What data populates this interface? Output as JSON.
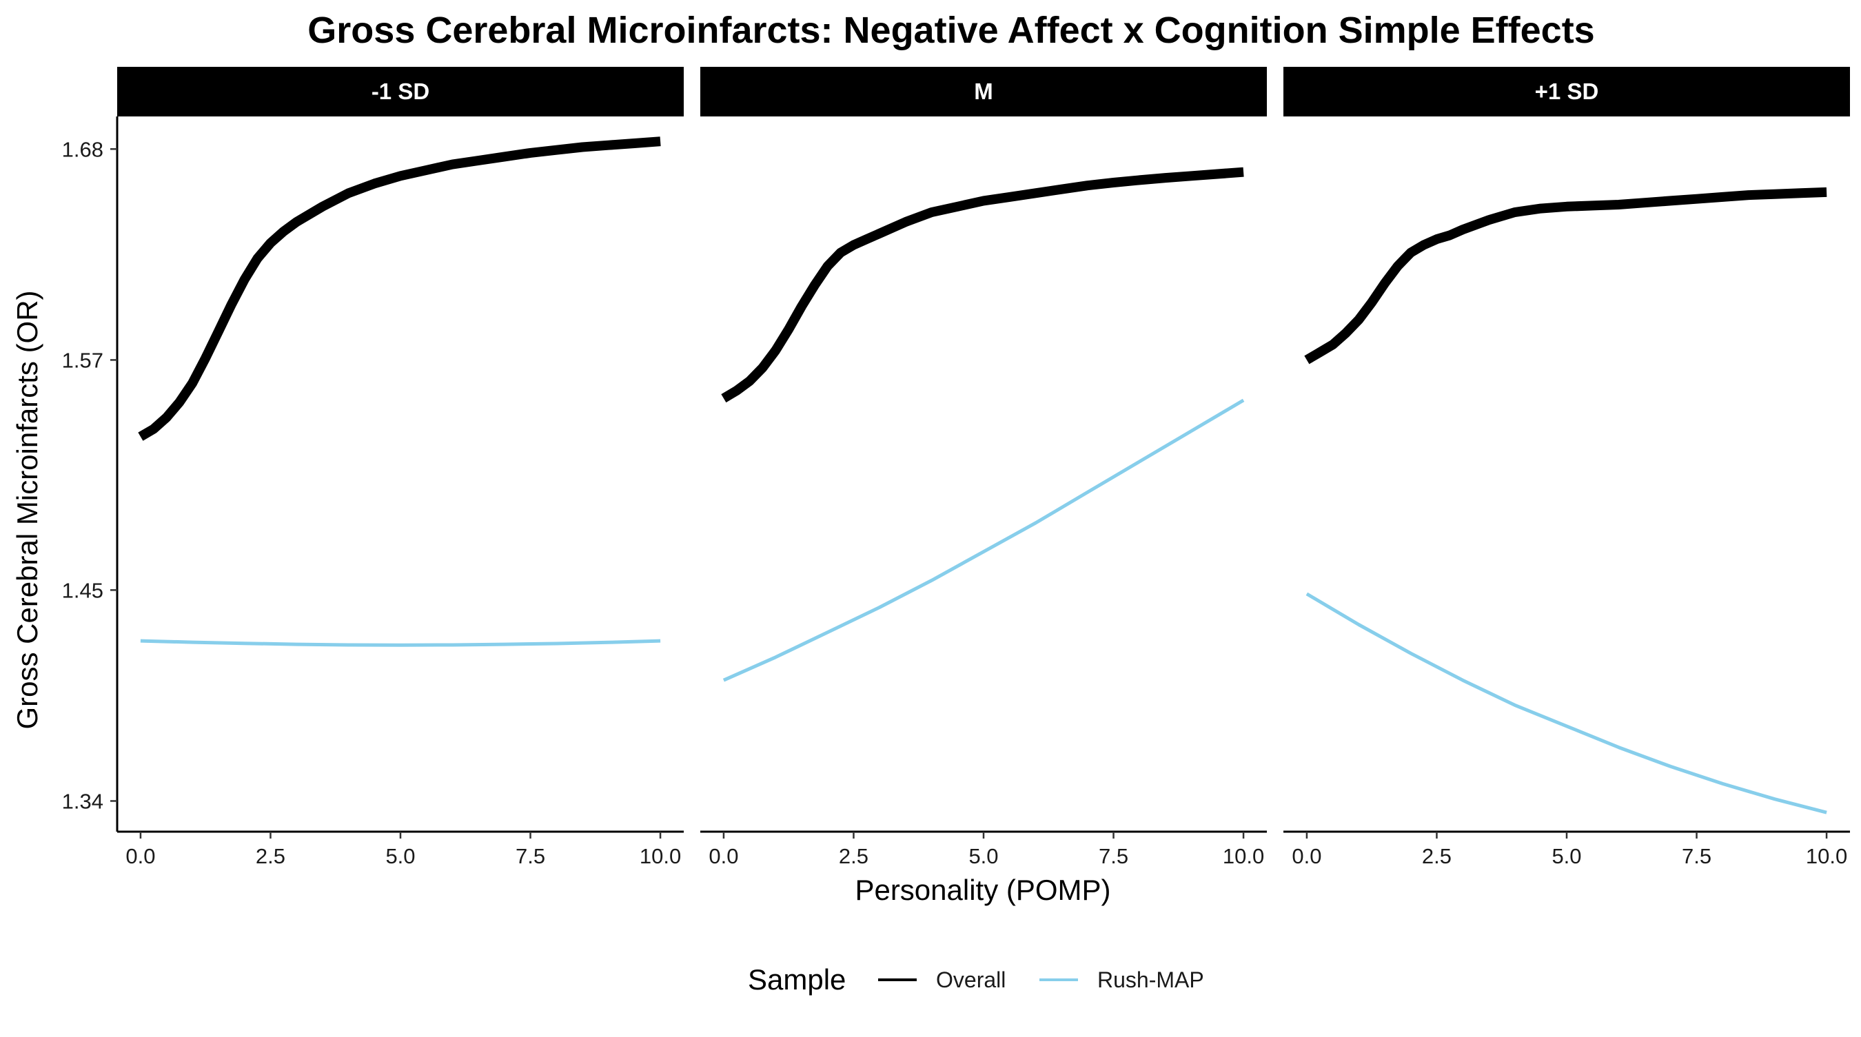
{
  "chart_data": {
    "type": "line",
    "title": "Gross Cerebral Microinfarcts: Negative Affect x Cognition Simple Effects",
    "xlabel": "Personality (POMP)",
    "ylabel": "Gross Cerebral Microinfarcts (OR)",
    "xlim": [
      -0.45,
      10.45
    ],
    "ylim": [
      1.324,
      1.697
    ],
    "xticks": [
      "0.0",
      "2.5",
      "5.0",
      "7.5",
      "10.0"
    ],
    "yticks": [
      "1.34",
      "1.45",
      "1.57",
      "1.68"
    ],
    "ytick_values": [
      1.34,
      1.45,
      1.57,
      1.68
    ],
    "xtick_values": [
      0,
      2.5,
      5,
      7.5,
      10
    ],
    "legend": {
      "title": "Sample",
      "position": "bottom"
    },
    "series_styles": [
      {
        "name": "Overall",
        "color": "#000000",
        "width": "thick"
      },
      {
        "name": "Rush-MAP",
        "color": "#87ceeb",
        "width": "thin"
      }
    ],
    "panels": [
      {
        "label": "-1 SD",
        "series": [
          {
            "name": "Overall",
            "x": [
              0,
              0.25,
              0.5,
              0.75,
              1,
              1.25,
              1.5,
              1.75,
              2,
              2.25,
              2.5,
              2.75,
              3,
              3.5,
              4,
              4.5,
              5,
              5.5,
              6,
              6.5,
              7,
              7.5,
              8,
              8.5,
              9,
              9.5,
              10
            ],
            "y": [
              1.53,
              1.534,
              1.54,
              1.548,
              1.558,
              1.571,
              1.585,
              1.599,
              1.612,
              1.623,
              1.631,
              1.637,
              1.642,
              1.65,
              1.657,
              1.662,
              1.666,
              1.669,
              1.672,
              1.674,
              1.676,
              1.678,
              1.6795,
              1.681,
              1.682,
              1.683,
              1.684
            ]
          },
          {
            "name": "Rush-MAP",
            "x": [
              0,
              1,
              2,
              3,
              4,
              5,
              6,
              7,
              8,
              9,
              10
            ],
            "y": [
              1.4235,
              1.4228,
              1.4222,
              1.4217,
              1.4214,
              1.4213,
              1.4214,
              1.4217,
              1.4221,
              1.4227,
              1.4235
            ]
          }
        ]
      },
      {
        "label": "M",
        "series": [
          {
            "name": "Overall",
            "x": [
              0,
              0.25,
              0.5,
              0.75,
              1,
              1.25,
              1.5,
              1.75,
              2,
              2.25,
              2.5,
              2.75,
              3,
              3.5,
              4,
              4.5,
              5,
              5.5,
              6,
              6.5,
              7,
              7.5,
              8,
              8.5,
              9,
              9.5,
              10
            ],
            "y": [
              1.55,
              1.554,
              1.559,
              1.566,
              1.575,
              1.586,
              1.598,
              1.609,
              1.619,
              1.626,
              1.63,
              1.633,
              1.636,
              1.642,
              1.647,
              1.65,
              1.653,
              1.655,
              1.657,
              1.659,
              1.661,
              1.6625,
              1.6638,
              1.665,
              1.666,
              1.667,
              1.668
            ]
          },
          {
            "name": "Rush-MAP",
            "x": [
              0,
              1,
              2,
              3,
              4,
              5,
              6,
              7,
              8,
              9,
              10
            ],
            "y": [
              1.403,
              1.415,
              1.428,
              1.441,
              1.455,
              1.47,
              1.485,
              1.501,
              1.517,
              1.533,
              1.549
            ]
          }
        ]
      },
      {
        "label": "+1 SD",
        "series": [
          {
            "name": "Overall",
            "x": [
              0,
              0.25,
              0.5,
              0.75,
              1,
              1.25,
              1.5,
              1.75,
              2,
              2.25,
              2.5,
              2.75,
              3,
              3.5,
              4,
              4.5,
              5,
              5.5,
              6,
              6.5,
              7,
              7.5,
              8,
              8.5,
              9,
              9.5,
              10
            ],
            "y": [
              1.57,
              1.574,
              1.578,
              1.584,
              1.591,
              1.6,
              1.61,
              1.619,
              1.626,
              1.63,
              1.633,
              1.635,
              1.638,
              1.643,
              1.647,
              1.649,
              1.65,
              1.6505,
              1.651,
              1.652,
              1.653,
              1.654,
              1.655,
              1.656,
              1.6565,
              1.657,
              1.6575
            ]
          },
          {
            "name": "Rush-MAP",
            "x": [
              0,
              1,
              2,
              3,
              4,
              5,
              6,
              7,
              8,
              9,
              10
            ],
            "y": [
              1.448,
              1.432,
              1.417,
              1.403,
              1.39,
              1.379,
              1.368,
              1.358,
              1.349,
              1.341,
              1.334
            ]
          }
        ]
      }
    ]
  }
}
